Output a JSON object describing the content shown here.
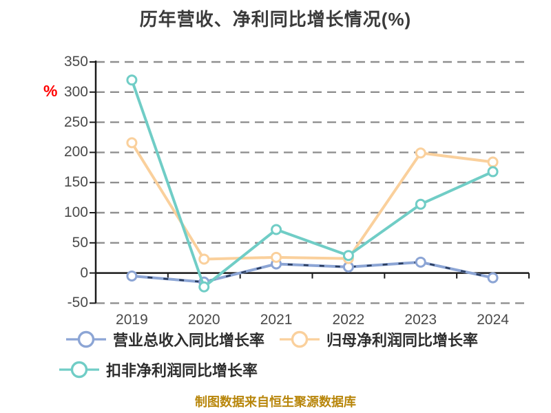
{
  "footer": {
    "text": "制图数据来自恒生聚源数据库",
    "color": "#B8860B"
  },
  "colors": {
    "background": "#FFFFFF",
    "title_text": "#3A3A3A",
    "axis_label": "#4A4A4A",
    "legend_text": "#2E2E2E",
    "grid_line": "#8F8F8F",
    "axis_line": "#1A1A1A",
    "unit_percent": "#FF0000",
    "footer_text": "#B8860B",
    "series_revenue": "#8CA5D5",
    "series_revenue_dash_overlay": "#2A3C5E",
    "series_net_profit": "#FAD09C",
    "series_deducted_net_profit": "#70CDC6"
  },
  "chart_data": {
    "type": "line",
    "title": "历年营收、净利同比增长情况(%)",
    "y_unit": "%",
    "categories": [
      "2019",
      "2020",
      "2021",
      "2022",
      "2023",
      "2024"
    ],
    "series": [
      {
        "name": "营业总收入同比增长率",
        "color": "#8CA5D5",
        "dash_overlay": "#2A3C5E",
        "values": [
          -5,
          -15,
          15,
          10,
          18,
          -8
        ]
      },
      {
        "name": "归母净利润同比增长率",
        "color": "#FAD09C",
        "values": [
          216,
          23,
          26,
          24,
          199,
          184
        ]
      },
      {
        "name": "扣非净利润同比增长率",
        "color": "#70CDC6",
        "values": [
          320,
          -23,
          72,
          29,
          114,
          168
        ]
      }
    ],
    "y_ticks": [
      350,
      300,
      250,
      200,
      150,
      100,
      50,
      0,
      -50
    ],
    "ylim": [
      -50,
      350
    ],
    "xlabel": "",
    "ylabel": "%",
    "grid": "dashed horizontal, solid line at 0",
    "legend_position": "bottom-left"
  }
}
